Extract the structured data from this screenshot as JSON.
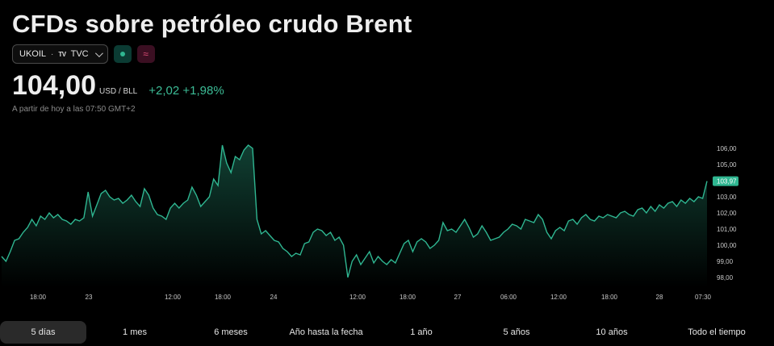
{
  "header": {
    "title": "CFDs sobre petróleo crudo Brent",
    "symbol": "UKOIL",
    "separator": "·",
    "tv_logo": "TV",
    "exchange": "TVC",
    "status_green_icon": "market-open-dot-icon",
    "status_red_icon": "approx-icon",
    "status_red_glyph": "≈"
  },
  "quote": {
    "price": "104,00",
    "unit": "USD / BLL",
    "change": "+2,02 +1,98%",
    "timestamp": "A partir de hoy a las 07:50 GMT+2",
    "change_color": "#3cbc96"
  },
  "chart_data": {
    "type": "area",
    "color": "#2fb691",
    "y_ticks": [
      "98,00",
      "99,00",
      "100,00",
      "101,00",
      "102,00",
      "103,00",
      "104,00",
      "105,00",
      "106,00"
    ],
    "ylim": [
      97.6,
      106.4
    ],
    "x_ticks": [
      "18:00",
      "23",
      "12:00",
      "18:00",
      "24",
      "12:00",
      "18:00",
      "27",
      "06:00",
      "12:00",
      "18:00",
      "28",
      "07:30"
    ],
    "last_value_label": "103,97",
    "series": [
      {
        "values": [
          99.3,
          99.0,
          99.6,
          100.3,
          100.4,
          100.8,
          101.1,
          101.6,
          101.2,
          101.8,
          101.6,
          102.0,
          101.7,
          101.9,
          101.6,
          101.5,
          101.3,
          101.6,
          101.5,
          101.7,
          103.3,
          101.8,
          102.5,
          103.2,
          103.4,
          103.0,
          102.8,
          102.9,
          102.6,
          102.8,
          103.1,
          102.7,
          102.4,
          103.5,
          103.1,
          102.3,
          101.9,
          101.8,
          101.6,
          102.3,
          102.6,
          102.3,
          102.6,
          102.8,
          103.6,
          103.1,
          102.4,
          102.7,
          103.0,
          104.1,
          103.7,
          106.2,
          105.1,
          104.5,
          105.5,
          105.3,
          105.9,
          106.2,
          106.0,
          101.6,
          100.7,
          100.9,
          100.6,
          100.3,
          100.2,
          99.8,
          99.6,
          99.3,
          99.5,
          99.4,
          100.1,
          100.2,
          100.8,
          101.0,
          100.9,
          100.6,
          100.8,
          100.3,
          100.5,
          100.0,
          98.0,
          99.0,
          99.4,
          98.8,
          99.2,
          99.6,
          98.9,
          99.3,
          99.0,
          98.8,
          99.1,
          98.9,
          99.5,
          100.1,
          100.3,
          99.6,
          100.2,
          100.4,
          100.2,
          99.8,
          100.0,
          100.3,
          101.4,
          100.9,
          101.0,
          100.8,
          101.2,
          101.6,
          101.1,
          100.5,
          100.7,
          101.2,
          100.8,
          100.3,
          100.4,
          100.5,
          100.8,
          101.0,
          101.3,
          101.2,
          101.0,
          101.6,
          101.5,
          101.4,
          101.9,
          101.6,
          100.8,
          100.4,
          100.9,
          101.1,
          100.9,
          101.5,
          101.6,
          101.3,
          101.7,
          101.9,
          101.6,
          101.5,
          101.8,
          101.7,
          101.9,
          101.8,
          101.7,
          102.0,
          102.1,
          101.9,
          101.8,
          102.2,
          102.3,
          102.0,
          102.4,
          102.1,
          102.5,
          102.3,
          102.6,
          102.7,
          102.4,
          102.8,
          102.6,
          102.9,
          102.7,
          103.0,
          102.9,
          103.97
        ]
      }
    ]
  },
  "ranges": [
    "5 días",
    "1 mes",
    "6 meses",
    "Año hasta la fecha",
    "1 año",
    "5 años",
    "10 años",
    "Todo el tiempo"
  ],
  "active_range": "5 días"
}
